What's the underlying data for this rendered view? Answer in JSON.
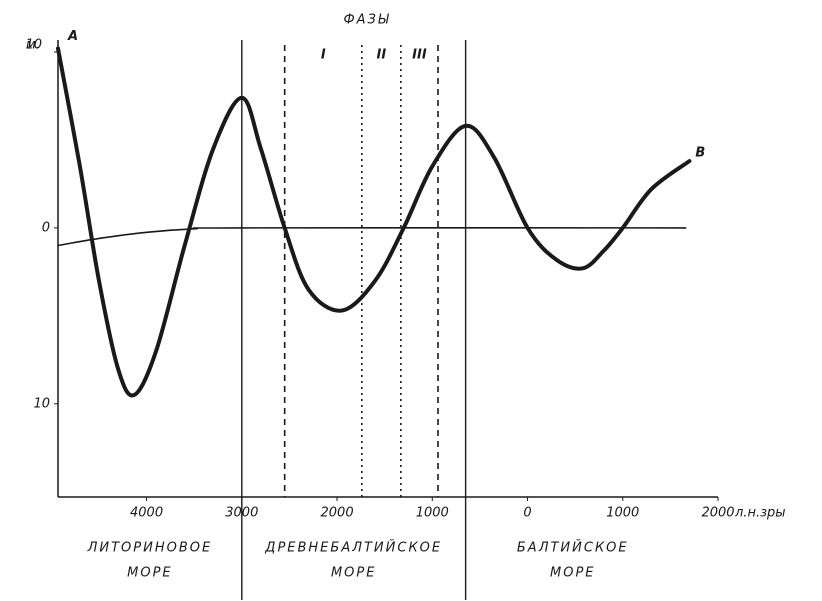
{
  "chart_data": {
    "type": "line",
    "title": "ФАЗЫ",
    "ylabel": "м.",
    "xlabel": "л.н.зры",
    "xlim": [
      -4930,
      2000
    ],
    "ylim": [
      -15.3,
      10
    ],
    "xticks": [
      {
        "value": -4000,
        "label": "4000"
      },
      {
        "value": -3000,
        "label": "3000"
      },
      {
        "value": -2000,
        "label": "2000"
      },
      {
        "value": -1000,
        "label": "1000"
      },
      0,
      1000,
      2000
    ],
    "yticks": [
      10,
      0,
      {
        "value": -10,
        "label": "10"
      }
    ],
    "series": [
      {
        "name": "A",
        "end_label": "B",
        "color": "#1a1a1a",
        "x": [
          -4930,
          -4700,
          -4500,
          -4300,
          -4130,
          -3900,
          -3600,
          -3300,
          -3000,
          -2800,
          -2550,
          -2300,
          -1950,
          -1600,
          -1300,
          -1000,
          -650,
          -350,
          0,
          300,
          580,
          800,
          1000,
          1300,
          1700
        ],
        "values": [
          10.2,
          3.5,
          -3,
          -8,
          -9.5,
          -7,
          -1,
          4.5,
          7.4,
          4.5,
          0,
          -3.5,
          -4.7,
          -3,
          0,
          3.5,
          5.8,
          4,
          0,
          -1.8,
          -2.3,
          -1.3,
          0,
          2.2,
          3.8
        ]
      },
      {
        "color": "#1a1a1a",
        "x": [
          -4930,
          -4500,
          -4000,
          -3500,
          -3000,
          1660
        ],
        "values": [
          -1,
          -0.6,
          -0.25,
          -0.05,
          0,
          0
        ]
      }
    ],
    "vlines": [
      {
        "x": -3000,
        "style": "solid"
      },
      {
        "x": -2550,
        "style": "dashed"
      },
      {
        "x": -1740,
        "style": "dotted"
      },
      {
        "x": -1330,
        "style": "dotted"
      },
      {
        "x": -940,
        "style": "dashed"
      },
      {
        "x": -650,
        "style": "solid"
      }
    ],
    "phases": [
      "I",
      "II",
      "III"
    ],
    "seas": [
      [
        "ЛИТОРИНОВОЕ",
        "МОРЕ"
      ],
      [
        "ДРЕВНЕБАЛТИЙСКОЕ",
        "МОРЕ"
      ],
      [
        "БАЛТИЙСКОЕ",
        "МОРЕ"
      ]
    ]
  }
}
